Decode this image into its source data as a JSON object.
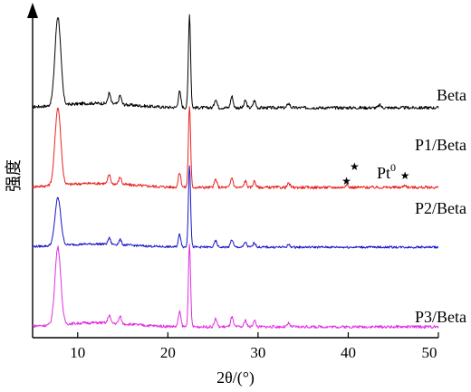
{
  "chart_data": {
    "type": "line",
    "xlabel": "2θ/(°)",
    "ylabel": "强度",
    "xlim": [
      5,
      50
    ],
    "x_ticks": [
      "10",
      "20",
      "30",
      "40",
      "50"
    ],
    "y_ticks_shown": false,
    "series": [
      {
        "name": "Beta",
        "color": "#000000",
        "peaks": [
          [
            7.8,
            1.0
          ],
          [
            13.5,
            0.12
          ],
          [
            14.7,
            0.1
          ],
          [
            21.3,
            0.18
          ],
          [
            22.4,
            1.05
          ],
          [
            25.3,
            0.1
          ],
          [
            27.1,
            0.13
          ],
          [
            28.6,
            0.08
          ],
          [
            29.6,
            0.08
          ],
          [
            33.4,
            0.05
          ],
          [
            43.5,
            0.03
          ]
        ]
      },
      {
        "name": "P1/Beta",
        "color": "#e8231f",
        "peaks": [
          [
            7.8,
            0.95
          ],
          [
            13.5,
            0.11
          ],
          [
            14.7,
            0.09
          ],
          [
            21.3,
            0.18
          ],
          [
            22.4,
            1.0
          ],
          [
            25.3,
            0.1
          ],
          [
            27.1,
            0.12
          ],
          [
            28.6,
            0.08
          ],
          [
            29.6,
            0.08
          ],
          [
            33.4,
            0.05
          ],
          [
            39.8,
            0.04
          ],
          [
            46.3,
            0.03
          ]
        ]
      },
      {
        "name": "P2/Beta",
        "color": "#1616c8",
        "peaks": [
          [
            7.8,
            0.75
          ],
          [
            13.5,
            0.1
          ],
          [
            14.7,
            0.08
          ],
          [
            21.3,
            0.2
          ],
          [
            22.4,
            1.3
          ],
          [
            25.3,
            0.1
          ],
          [
            27.1,
            0.12
          ],
          [
            28.6,
            0.08
          ],
          [
            29.6,
            0.07
          ],
          [
            33.4,
            0.04
          ]
        ]
      },
      {
        "name": "P3/Beta",
        "color": "#e02ee0",
        "peaks": [
          [
            7.8,
            0.95
          ],
          [
            13.5,
            0.1
          ],
          [
            14.7,
            0.09
          ],
          [
            21.3,
            0.18
          ],
          [
            22.4,
            1.0
          ],
          [
            25.3,
            0.1
          ],
          [
            27.1,
            0.12
          ],
          [
            28.6,
            0.08
          ],
          [
            29.6,
            0.08
          ],
          [
            33.4,
            0.04
          ]
        ]
      }
    ],
    "annotations": {
      "marker_symbol": "★",
      "label": "Pt",
      "label_sup": "0",
      "marker_x": [
        39.8,
        40.7,
        46.3
      ]
    }
  }
}
